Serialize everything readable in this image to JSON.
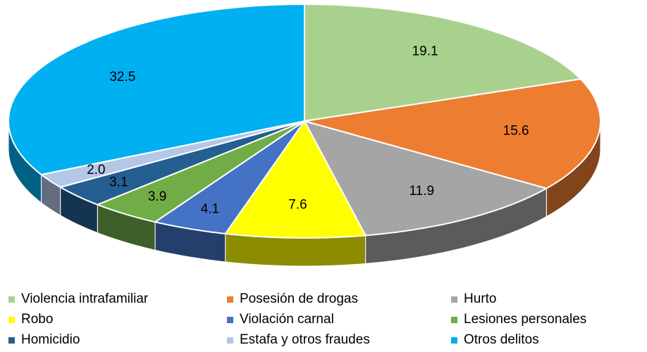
{
  "chart_data": {
    "type": "pie3d",
    "categories": [
      "Violencia intrafamiliar",
      "Posesión de drogas",
      "Hurto",
      "Robo",
      "Violación carnal",
      "Lesiones personales",
      "Homicidio",
      "Estafa y otros fraudes",
      "Otros delitos"
    ],
    "values": [
      19.1,
      15.6,
      11.9,
      7.6,
      4.1,
      3.9,
      3.1,
      2,
      32.5
    ],
    "value_labels": [
      "19.1",
      "15.6",
      "11.9",
      "7.6",
      "4.1",
      "3.9",
      "3.1",
      "2.0",
      "32.5"
    ],
    "colors": [
      "#a9d18e",
      "#ed7d31",
      "#a5a5a5",
      "#ffff00",
      "#4472c4",
      "#70ad47",
      "#255e91",
      "#b4c7e7",
      "#00b0f0"
    ],
    "legend": "bottom"
  }
}
